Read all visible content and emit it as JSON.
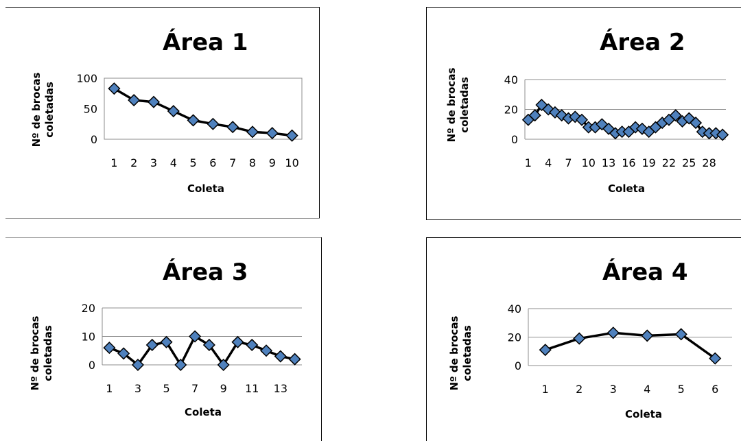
{
  "chart_data": [
    {
      "type": "line",
      "title": "Área 1",
      "xlabel": "Coleta",
      "ylabel": [
        "Nº de brocas",
        "coletadas"
      ],
      "ylim": [
        0,
        100
      ],
      "yticks": [
        0,
        50,
        100
      ],
      "grid": false,
      "plot_border": true,
      "x": [
        1,
        2,
        3,
        4,
        5,
        6,
        7,
        8,
        9,
        10
      ],
      "xtick_labels": [
        "1",
        "2",
        "3",
        "4",
        "5",
        "6",
        "7",
        "8",
        "9",
        "10"
      ],
      "values": [
        83,
        64,
        61,
        46,
        31,
        25,
        20,
        12,
        10,
        6
      ]
    },
    {
      "type": "line",
      "title": "Área 2",
      "xlabel": "Coleta",
      "ylabel": [
        "Nº de brocas",
        "coletadas"
      ],
      "ylim": [
        0,
        40
      ],
      "yticks": [
        0,
        20,
        40
      ],
      "grid": true,
      "plot_border": false,
      "x": [
        1,
        2,
        3,
        4,
        5,
        6,
        7,
        8,
        9,
        10,
        11,
        12,
        13,
        14,
        15,
        16,
        17,
        18,
        19,
        20,
        21,
        22,
        23,
        24,
        25,
        26,
        27,
        28,
        29,
        30
      ],
      "xtick_labels": [
        "1",
        "4",
        "7",
        "10",
        "13",
        "16",
        "19",
        "22",
        "25",
        "28"
      ],
      "xtick_positions": [
        1,
        4,
        7,
        10,
        13,
        16,
        19,
        22,
        25,
        28
      ],
      "values": [
        13,
        16,
        23,
        20,
        18,
        16,
        14,
        15,
        13,
        8,
        8,
        10,
        7,
        4,
        5,
        5,
        8,
        7,
        5,
        8,
        11,
        13,
        16,
        12,
        14,
        11,
        5,
        4,
        4,
        3
      ]
    },
    {
      "type": "line",
      "title": "Área 3",
      "xlabel": "Coleta",
      "ylabel": [
        "Nº de brocas",
        "coletadas"
      ],
      "ylim": [
        0,
        20
      ],
      "yticks": [
        0,
        10,
        20
      ],
      "grid": true,
      "plot_border": false,
      "x": [
        1,
        2,
        3,
        4,
        5,
        6,
        7,
        8,
        9,
        10,
        11,
        12,
        13,
        14
      ],
      "xtick_labels": [
        "1",
        "3",
        "5",
        "7",
        "9",
        "11",
        "13"
      ],
      "xtick_positions": [
        1,
        3,
        5,
        7,
        9,
        11,
        13
      ],
      "values": [
        6,
        4,
        0,
        7,
        8,
        0,
        10,
        7,
        0,
        8,
        7,
        5,
        3,
        2
      ]
    },
    {
      "type": "line",
      "title": "Área 4",
      "xlabel": "Coleta",
      "ylabel": [
        "Nº de brocas",
        "coletadas"
      ],
      "ylim": [
        0,
        40
      ],
      "yticks": [
        0,
        20,
        40
      ],
      "grid": true,
      "plot_border": false,
      "x": [
        1,
        2,
        3,
        4,
        5,
        6
      ],
      "xtick_labels": [
        "1",
        "2",
        "3",
        "4",
        "5",
        "6"
      ],
      "values": [
        11,
        19,
        23,
        21,
        22,
        5
      ]
    }
  ],
  "colors": {
    "line": "#000000",
    "marker_fill": "#4f81bd",
    "marker_stroke": "#000000",
    "grid": "#8c8c8c",
    "axis": "#8c8c8c"
  }
}
